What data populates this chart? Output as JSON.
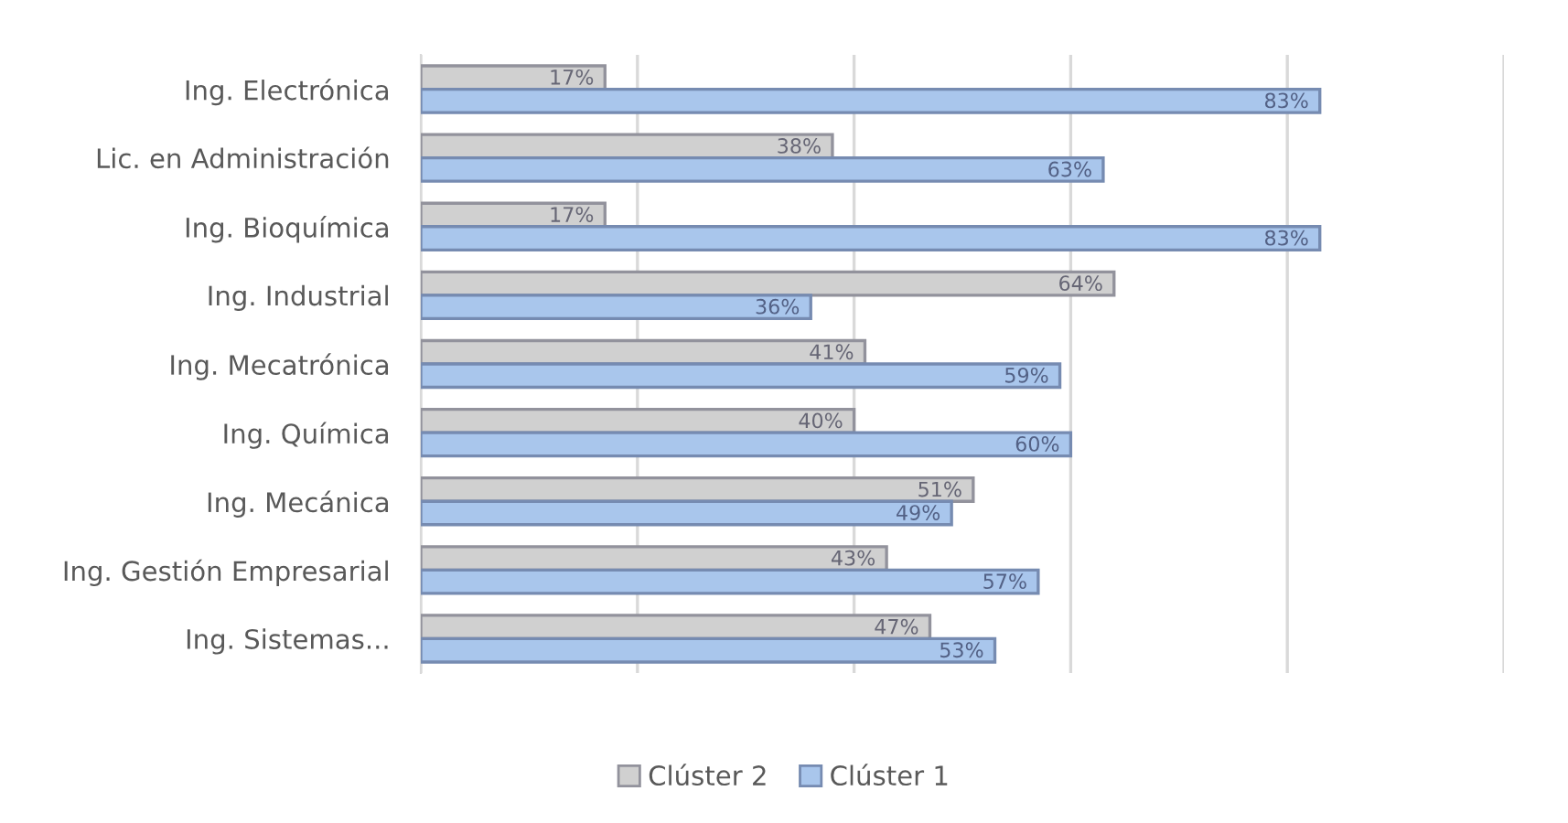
{
  "chart_data": {
    "type": "bar",
    "orientation": "horizontal",
    "categories": [
      "Ing. Electrónica",
      "Lic. en Administración",
      "Ing. Bioquímica",
      "Ing. Industrial",
      "Ing. Mecatrónica",
      "Ing. Química",
      "Ing. Mecánica",
      "Ing. Gestión Empresarial",
      "Ing. Sistemas..."
    ],
    "series": [
      {
        "name": "Clúster 2",
        "color": "#d0d0d0",
        "values": [
          17,
          38,
          17,
          64,
          41,
          40,
          51,
          43,
          47
        ],
        "value_labels": [
          "17%",
          "38%",
          "17%",
          "64%",
          "41%",
          "40%",
          "51%",
          "43%",
          "47%"
        ]
      },
      {
        "name": "Clúster 1",
        "color": "#a9c6ec",
        "values": [
          83,
          63,
          83,
          36,
          59,
          60,
          49,
          57,
          53
        ],
        "value_labels": [
          "83%",
          "63%",
          "83%",
          "36%",
          "59%",
          "60%",
          "49%",
          "57%",
          "53%"
        ]
      }
    ],
    "xlim": [
      0,
      100
    ],
    "xticks": [
      {
        "value": 0,
        "label": null
      },
      {
        "value": 20,
        "label": null
      },
      {
        "value": 40,
        "label": null
      },
      {
        "value": 60,
        "label": null
      },
      {
        "value": 80,
        "label": null
      },
      {
        "value": 100,
        "label": null
      }
    ],
    "tick_labels": "y",
    "grid": "x",
    "legend": "bottom"
  }
}
